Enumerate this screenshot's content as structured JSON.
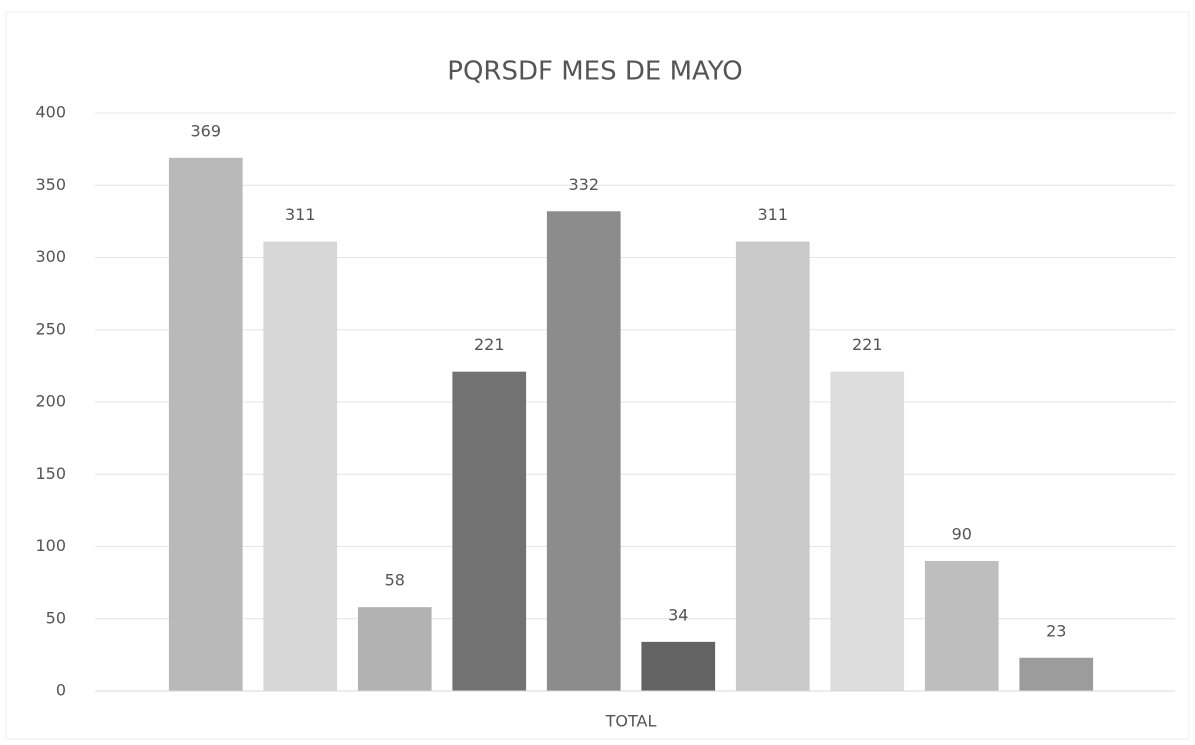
{
  "chart_data": {
    "type": "bar",
    "title": "PQRSDF MES DE MAYO",
    "categories": [
      "TOTAL"
    ],
    "series": [
      {
        "color": "#b9b9b9",
        "values": [
          369
        ]
      },
      {
        "color": "#d7d7d7",
        "values": [
          311
        ]
      },
      {
        "color": "#b2b2b2",
        "values": [
          58
        ]
      },
      {
        "color": "#727272",
        "values": [
          221
        ]
      },
      {
        "color": "#8c8c8c",
        "values": [
          332
        ]
      },
      {
        "color": "#636363",
        "values": [
          34
        ]
      },
      {
        "color": "#c9c9c9",
        "values": [
          311
        ]
      },
      {
        "color": "#dddddd",
        "values": [
          221
        ]
      },
      {
        "color": "#bebebe",
        "values": [
          90
        ]
      },
      {
        "color": "#9c9c9c",
        "values": [
          23
        ]
      }
    ],
    "ylim": [
      0,
      400
    ],
    "yticks": [
      0,
      50,
      100,
      150,
      200,
      250,
      300,
      350,
      400
    ],
    "grid": true
  }
}
